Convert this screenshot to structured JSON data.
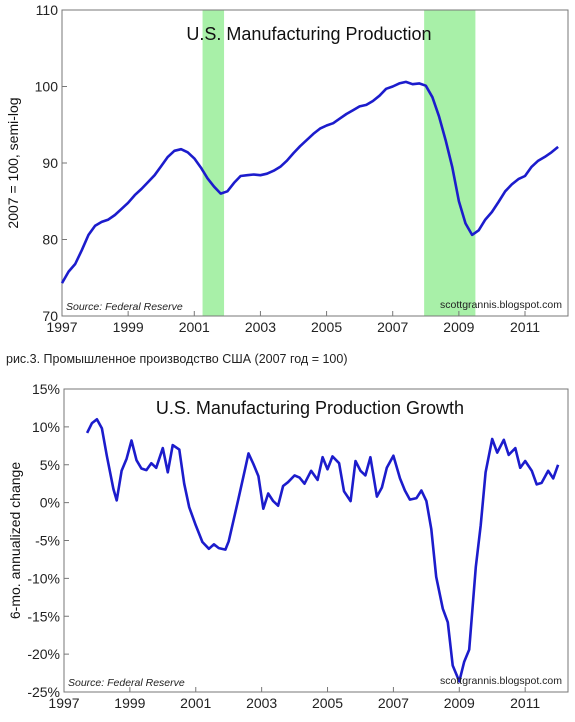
{
  "caption": "рис.3. Промышленное производство США (2007 год = 100)",
  "colors": {
    "line": "#1c1ccc",
    "recession": "#a8f0a8",
    "frame": "#777777"
  },
  "chart_data": [
    {
      "type": "line",
      "title": "U.S. Manufacturing Production",
      "ylabel": "2007 = 100, semi-log",
      "source": "Source: Federal Reserve",
      "credit": "scottgrannis.blogspot.com",
      "xlim": [
        1997.0,
        2012.3
      ],
      "ylim": [
        70,
        110
      ],
      "yticks": [
        70,
        80,
        90,
        100,
        110
      ],
      "xticks": [
        1997,
        1999,
        2001,
        2003,
        2005,
        2007,
        2009,
        2011
      ],
      "recessions": [
        [
          2001.25,
          2001.9
        ],
        [
          2007.95,
          2009.5
        ]
      ],
      "series": [
        {
          "x": [
            1997.0,
            1997.2,
            1997.4,
            1997.6,
            1997.8,
            1998.0,
            1998.2,
            1998.4,
            1998.6,
            1998.8,
            1999.0,
            1999.2,
            1999.4,
            1999.6,
            1999.8,
            2000.0,
            2000.2,
            2000.4,
            2000.6,
            2000.8,
            2001.0,
            2001.2,
            2001.4,
            2001.6,
            2001.8,
            2002.0,
            2002.2,
            2002.4,
            2002.6,
            2002.8,
            2003.0,
            2003.2,
            2003.4,
            2003.6,
            2003.8,
            2004.0,
            2004.2,
            2004.4,
            2004.6,
            2004.8,
            2005.0,
            2005.2,
            2005.4,
            2005.6,
            2005.8,
            2006.0,
            2006.2,
            2006.4,
            2006.6,
            2006.8,
            2007.0,
            2007.2,
            2007.4,
            2007.6,
            2007.8,
            2008.0,
            2008.2,
            2008.4,
            2008.6,
            2008.8,
            2009.0,
            2009.2,
            2009.4,
            2009.6,
            2009.8,
            2010.0,
            2010.2,
            2010.4,
            2010.6,
            2010.8,
            2011.0,
            2011.2,
            2011.4,
            2011.6,
            2011.8,
            2012.0
          ],
          "y": [
            74.3,
            75.8,
            76.8,
            78.6,
            80.6,
            81.8,
            82.3,
            82.6,
            83.2,
            84.0,
            84.8,
            85.8,
            86.6,
            87.5,
            88.4,
            89.6,
            90.8,
            91.6,
            91.8,
            91.4,
            90.6,
            89.4,
            88.0,
            86.9,
            86.0,
            86.3,
            87.4,
            88.3,
            88.4,
            88.5,
            88.4,
            88.6,
            89.0,
            89.5,
            90.3,
            91.3,
            92.2,
            93.0,
            93.8,
            94.5,
            94.9,
            95.2,
            95.8,
            96.4,
            96.9,
            97.4,
            97.6,
            98.1,
            98.8,
            99.7,
            100.0,
            100.4,
            100.6,
            100.3,
            100.4,
            100.1,
            98.6,
            96.1,
            93.0,
            89.5,
            85.0,
            82.1,
            80.6,
            81.2,
            82.6,
            83.6,
            84.9,
            86.3,
            87.2,
            87.9,
            88.3,
            89.5,
            90.3,
            90.8,
            91.4,
            92.1
          ]
        }
      ]
    },
    {
      "type": "line",
      "title": "U.S. Manufacturing Production Growth",
      "ylabel": "6-mo. annualized change",
      "source": "Source: Federal Reserve",
      "credit": "scottgrannis.blogspot.com",
      "xlim": [
        1997.0,
        2012.3
      ],
      "ylim": [
        -25,
        15
      ],
      "yticks": [
        -25,
        -20,
        -15,
        -10,
        -5,
        0,
        5,
        10,
        15
      ],
      "ytick_labels": [
        "-25%",
        "-20%",
        "-15%",
        "-10%",
        "-5%",
        "0%",
        "5%",
        "10%",
        "15%"
      ],
      "xticks": [
        1997,
        1999,
        2001,
        2003,
        2005,
        2007,
        2009,
        2011
      ],
      "series": [
        {
          "x": [
            1997.7,
            1997.85,
            1998.0,
            1998.15,
            1998.3,
            1998.5,
            1998.6,
            1998.75,
            1998.9,
            1999.05,
            1999.2,
            1999.35,
            1999.5,
            1999.65,
            1999.8,
            2000.0,
            2000.15,
            2000.3,
            2000.5,
            2000.65,
            2000.8,
            2001.0,
            2001.2,
            2001.4,
            2001.55,
            2001.7,
            2001.9,
            2002.0,
            2002.15,
            2002.3,
            2002.5,
            2002.6,
            2002.75,
            2002.9,
            2003.05,
            2003.2,
            2003.35,
            2003.5,
            2003.65,
            2003.8,
            2004.0,
            2004.15,
            2004.3,
            2004.5,
            2004.7,
            2004.85,
            2005.0,
            2005.15,
            2005.35,
            2005.5,
            2005.7,
            2005.85,
            2006.0,
            2006.15,
            2006.3,
            2006.5,
            2006.65,
            2006.8,
            2007.0,
            2007.2,
            2007.35,
            2007.5,
            2007.7,
            2007.85,
            2008.0,
            2008.15,
            2008.3,
            2008.5,
            2008.65,
            2008.8,
            2009.0,
            2009.15,
            2009.3,
            2009.5,
            2009.65,
            2009.8,
            2010.0,
            2010.15,
            2010.35,
            2010.5,
            2010.7,
            2010.85,
            2011.0,
            2011.2,
            2011.35,
            2011.5,
            2011.7,
            2011.85,
            2012.0
          ],
          "y": [
            9.2,
            10.5,
            11.0,
            9.8,
            6.2,
            1.8,
            0.3,
            4.2,
            5.8,
            8.2,
            5.6,
            4.5,
            4.3,
            5.2,
            4.6,
            7.2,
            4.0,
            7.6,
            7.0,
            2.5,
            -0.6,
            -3.0,
            -5.2,
            -6.1,
            -5.5,
            -6.0,
            -6.2,
            -5.1,
            -2.3,
            0.6,
            4.5,
            6.5,
            5.1,
            3.5,
            -0.8,
            1.2,
            0.2,
            -0.4,
            2.2,
            2.7,
            3.6,
            3.3,
            2.5,
            4.2,
            3.0,
            6.0,
            4.4,
            6.1,
            5.2,
            1.5,
            0.2,
            5.5,
            4.2,
            3.6,
            6.0,
            0.8,
            2.0,
            4.6,
            6.2,
            3.2,
            1.6,
            0.4,
            0.6,
            1.6,
            0.2,
            -3.5,
            -9.8,
            -14.0,
            -15.8,
            -21.5,
            -23.6,
            -21.0,
            -19.4,
            -8.5,
            -3.0,
            4.0,
            8.4,
            6.6,
            8.3,
            6.3,
            7.2,
            4.6,
            5.5,
            4.2,
            2.4,
            2.6,
            4.2,
            3.2,
            5.0
          ]
        }
      ]
    }
  ]
}
